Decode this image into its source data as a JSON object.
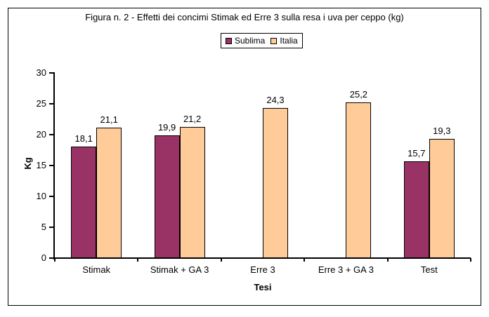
{
  "figure": {
    "title": "Figura n. 2 - Effetti dei concimi Stimak ed Erre 3 sulla resa i uva per ceppo (kg)"
  },
  "chart_data": {
    "type": "bar",
    "title": "Figura n. 2 - Effetti dei concimi Stimak ed Erre 3 sulla resa i uva per ceppo (kg)",
    "categories": [
      "Stimak",
      "Stimak + GA 3",
      "Erre 3",
      "Erre 3 + GA 3",
      "Test"
    ],
    "series": [
      {
        "name": "Sublima",
        "color": "#993366",
        "values": [
          18.1,
          19.9,
          null,
          null,
          15.7
        ],
        "labels": [
          "18,1",
          "19,9",
          "",
          "",
          "15,7"
        ]
      },
      {
        "name": "Italia",
        "color": "#FFCC99",
        "values": [
          21.1,
          21.2,
          24.3,
          25.2,
          19.3
        ],
        "labels": [
          "21,1",
          "21,2",
          "24,3",
          "25,2",
          "19,3"
        ]
      }
    ],
    "xlabel": "Tesi",
    "ylabel": "Kg",
    "ylim": [
      0,
      30
    ],
    "ytick_step": 5,
    "yticks": [
      "0",
      "5",
      "10",
      "15",
      "20",
      "25",
      "30"
    ],
    "legend_position": "top-center",
    "grid": false,
    "background": "#FFFFFF",
    "axis_color": "#000000"
  }
}
